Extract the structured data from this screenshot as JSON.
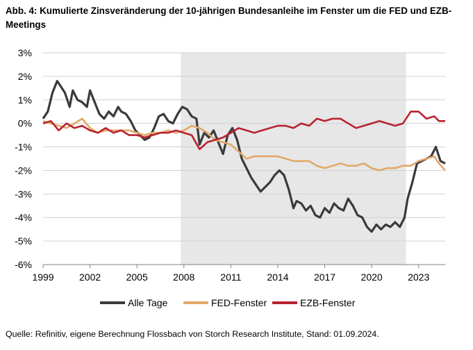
{
  "title": "Abb. 4: Kumulierte Zinsveränderung der 10-jährigen Bundesanleihe im Fenster um die FED und EZB-Meetings",
  "source": "Quelle: Refinitiv, eigene Berechnung Flossbach von Storch Research Institute, Stand: 01.09.2024.",
  "chart_data": {
    "type": "line",
    "title": "Abb. 4: Kumulierte Zinsveränderung der 10-jährigen Bundesanleihe im Fenster um die FED und EZB-Meetings",
    "xlabel": "",
    "ylabel": "",
    "xlim": [
      1999.0,
      2024.7
    ],
    "ylim": [
      -6,
      3
    ],
    "y_ticks": [
      3,
      2,
      1,
      0,
      -1,
      -2,
      -3,
      -4,
      -5,
      -6
    ],
    "y_tick_labels": [
      "3%",
      "2%",
      "1%",
      "0%",
      "-1%",
      "-2%",
      "-3%",
      "-4%",
      "-5%",
      "-6%"
    ],
    "x_ticks": [
      1999,
      2002,
      2005,
      2008,
      2011,
      2014,
      2017,
      2020,
      2023
    ],
    "x_tick_labels": [
      "1999",
      "2002",
      "2005",
      "2008",
      "2011",
      "2014",
      "2017",
      "2020",
      "2023"
    ],
    "shaded_region": [
      2007.8,
      2022.2
    ],
    "legend_position": "bottom",
    "series": [
      {
        "name": "Alle Tage",
        "color": "#3a3a3a",
        "x": [
          1999.0,
          1999.3,
          1999.6,
          1999.9,
          2000.1,
          2000.4,
          2000.7,
          2000.9,
          2001.2,
          2001.5,
          2001.8,
          2002.0,
          2002.3,
          2002.6,
          2002.9,
          2003.2,
          2003.5,
          2003.8,
          2004.0,
          2004.3,
          2004.6,
          2004.9,
          2005.2,
          2005.5,
          2005.8,
          2006.1,
          2006.4,
          2006.7,
          2007.0,
          2007.3,
          2007.6,
          2007.9,
          2008.2,
          2008.5,
          2008.8,
          2009.0,
          2009.3,
          2009.6,
          2009.9,
          2010.2,
          2010.5,
          2010.8,
          2011.1,
          2011.4,
          2011.7,
          2012.0,
          2012.3,
          2012.6,
          2012.9,
          2013.2,
          2013.5,
          2013.8,
          2014.1,
          2014.4,
          2014.7,
          2015.0,
          2015.2,
          2015.5,
          2015.8,
          2016.1,
          2016.4,
          2016.7,
          2017.0,
          2017.3,
          2017.6,
          2017.9,
          2018.2,
          2018.5,
          2018.8,
          2019.1,
          2019.4,
          2019.7,
          2020.0,
          2020.3,
          2020.6,
          2020.9,
          2021.2,
          2021.5,
          2021.8,
          2022.1,
          2022.3,
          2022.6,
          2022.9,
          2023.2,
          2023.5,
          2023.8,
          2024.1,
          2024.4,
          2024.7
        ],
        "values": [
          0.2,
          0.5,
          1.3,
          1.8,
          1.6,
          1.3,
          0.7,
          1.4,
          1.0,
          0.9,
          0.7,
          1.4,
          0.9,
          0.4,
          0.2,
          0.5,
          0.3,
          0.7,
          0.5,
          0.4,
          0.1,
          -0.3,
          -0.5,
          -0.7,
          -0.6,
          -0.2,
          0.3,
          0.4,
          0.1,
          0.0,
          0.4,
          0.7,
          0.6,
          0.3,
          0.2,
          -0.9,
          -0.4,
          -0.6,
          -0.3,
          -0.8,
          -1.3,
          -0.5,
          -0.2,
          -0.7,
          -1.5,
          -1.9,
          -2.3,
          -2.6,
          -2.9,
          -2.7,
          -2.5,
          -2.2,
          -2.0,
          -2.2,
          -2.8,
          -3.6,
          -3.3,
          -3.4,
          -3.7,
          -3.5,
          -3.9,
          -4.0,
          -3.6,
          -3.8,
          -3.4,
          -3.6,
          -3.7,
          -3.2,
          -3.5,
          -3.9,
          -4.0,
          -4.4,
          -4.6,
          -4.3,
          -4.5,
          -4.3,
          -4.4,
          -4.2,
          -4.4,
          -4.0,
          -3.2,
          -2.5,
          -1.7,
          -1.6,
          -1.5,
          -1.4,
          -1.0,
          -1.6,
          -1.7
        ]
      },
      {
        "name": "FED-Fenster",
        "color": "#e2a868",
        "x": [
          1999.0,
          1999.5,
          2000.0,
          2000.5,
          2001.0,
          2001.5,
          2002.0,
          2002.5,
          2003.0,
          2003.5,
          2004.0,
          2004.5,
          2005.0,
          2005.5,
          2006.0,
          2006.5,
          2007.0,
          2007.5,
          2008.0,
          2008.5,
          2009.0,
          2009.5,
          2010.0,
          2010.5,
          2011.0,
          2011.5,
          2012.0,
          2012.5,
          2013.0,
          2013.5,
          2014.0,
          2014.5,
          2015.0,
          2015.5,
          2016.0,
          2016.5,
          2017.0,
          2017.5,
          2018.0,
          2018.5,
          2019.0,
          2019.5,
          2020.0,
          2020.5,
          2021.0,
          2021.5,
          2022.0,
          2022.5,
          2023.0,
          2023.5,
          2024.0,
          2024.3,
          2024.7
        ],
        "values": [
          0.1,
          0.0,
          -0.1,
          -0.2,
          0.0,
          0.2,
          -0.2,
          -0.4,
          -0.3,
          -0.3,
          -0.3,
          -0.3,
          -0.4,
          -0.5,
          -0.4,
          -0.4,
          -0.3,
          -0.4,
          -0.3,
          -0.1,
          -0.2,
          -0.4,
          -0.7,
          -0.8,
          -0.9,
          -1.2,
          -1.5,
          -1.4,
          -1.4,
          -1.4,
          -1.4,
          -1.5,
          -1.6,
          -1.6,
          -1.6,
          -1.8,
          -1.9,
          -1.8,
          -1.7,
          -1.8,
          -1.8,
          -1.7,
          -1.9,
          -2.0,
          -1.9,
          -1.9,
          -1.8,
          -1.8,
          -1.6,
          -1.5,
          -1.4,
          -1.7,
          -2.0
        ]
      },
      {
        "name": "EZB-Fenster",
        "color": "#b8232f",
        "x": [
          1999.0,
          1999.5,
          2000.0,
          2000.5,
          2001.0,
          2001.5,
          2002.0,
          2002.5,
          2003.0,
          2003.5,
          2004.0,
          2004.5,
          2005.0,
          2005.5,
          2006.0,
          2006.5,
          2007.0,
          2007.5,
          2008.0,
          2008.5,
          2009.0,
          2009.5,
          2010.0,
          2010.5,
          2011.0,
          2011.5,
          2012.0,
          2012.5,
          2013.0,
          2013.5,
          2014.0,
          2014.5,
          2015.0,
          2015.5,
          2016.0,
          2016.5,
          2017.0,
          2017.5,
          2018.0,
          2018.5,
          2019.0,
          2019.5,
          2020.0,
          2020.5,
          2021.0,
          2021.5,
          2022.0,
          2022.5,
          2023.0,
          2023.5,
          2024.0,
          2024.3,
          2024.7
        ],
        "values": [
          0.0,
          0.1,
          -0.3,
          0.0,
          -0.2,
          -0.1,
          -0.3,
          -0.4,
          -0.2,
          -0.4,
          -0.3,
          -0.5,
          -0.5,
          -0.6,
          -0.5,
          -0.4,
          -0.4,
          -0.3,
          -0.4,
          -0.5,
          -1.1,
          -0.8,
          -0.7,
          -0.6,
          -0.4,
          -0.2,
          -0.3,
          -0.4,
          -0.3,
          -0.2,
          -0.1,
          -0.1,
          -0.2,
          0.0,
          -0.1,
          0.2,
          0.1,
          0.2,
          0.2,
          0.0,
          -0.2,
          -0.1,
          0.0,
          0.1,
          0.0,
          -0.1,
          0.0,
          0.5,
          0.5,
          0.2,
          0.3,
          0.1,
          0.1
        ]
      }
    ]
  }
}
